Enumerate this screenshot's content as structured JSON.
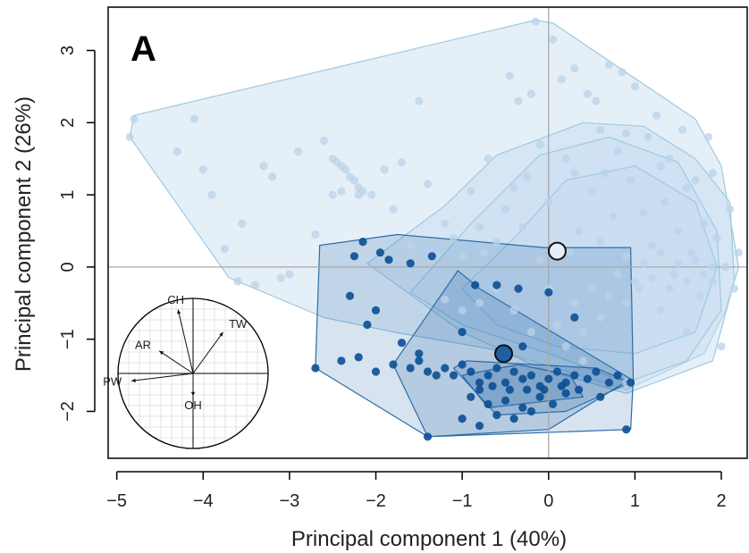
{
  "chart_data": {
    "type": "scatter",
    "panel_label": "A",
    "xlabel": "Principal component 1 (40%)",
    "ylabel": "Principal component 2 (26%)",
    "xlim": [
      -5.1,
      2.3
    ],
    "ylim": [
      -2.65,
      3.6
    ],
    "x_ticks": [
      -5,
      -4,
      -3,
      -2,
      -1,
      0,
      1,
      2
    ],
    "y_ticks": [
      -2,
      -1,
      0,
      1,
      2,
      3
    ],
    "x_tick_labels": [
      "−5",
      "−4",
      "−3",
      "−2",
      "−1",
      "0",
      "1",
      "2"
    ],
    "y_tick_labels": [
      "−2",
      "−1",
      "0",
      "1",
      "2",
      "3"
    ],
    "reference_lines": {
      "x": 0,
      "y": 0
    },
    "colors": {
      "light": "#c6dbef",
      "light_point": "#b9d3ea",
      "light_outline": "#9ecae1",
      "dark": "#08519c",
      "dark_point": "#0b4f93",
      "dark_outline": "#2c6da8"
    },
    "series": [
      {
        "group": "light",
        "centroid": [
          0.1,
          0.22
        ],
        "hulls": [
          [
            [
              -4.85,
              1.8
            ],
            [
              -4.8,
              2.1
            ],
            [
              -0.15,
              3.42
            ],
            [
              0.05,
              3.38
            ],
            [
              1.7,
              2.05
            ],
            [
              2.0,
              1.4
            ],
            [
              2.2,
              0.0
            ],
            [
              2.05,
              -0.6
            ],
            [
              1.8,
              -1.2
            ],
            [
              0.9,
              -1.7
            ],
            [
              -0.6,
              -1.15
            ],
            [
              -1.8,
              -0.9
            ],
            [
              -2.6,
              -0.7
            ],
            [
              -3.7,
              -0.15
            ],
            [
              -4.85,
              1.8
            ]
          ],
          [
            [
              -2.1,
              0.05
            ],
            [
              -1.2,
              0.85
            ],
            [
              -0.6,
              1.55
            ],
            [
              0.4,
              2.0
            ],
            [
              1.1,
              1.95
            ],
            [
              1.7,
              1.5
            ],
            [
              2.1,
              0.9
            ],
            [
              2.15,
              -0.2
            ],
            [
              1.9,
              -1.3
            ],
            [
              0.9,
              -1.75
            ],
            [
              -0.1,
              -1.4
            ],
            [
              -1.0,
              -0.9
            ],
            [
              -2.1,
              0.05
            ]
          ],
          [
            [
              -1.6,
              -0.35
            ],
            [
              -0.9,
              0.6
            ],
            [
              -0.1,
              1.55
            ],
            [
              0.7,
              1.8
            ],
            [
              1.5,
              1.45
            ],
            [
              1.95,
              0.5
            ],
            [
              2.0,
              -0.6
            ],
            [
              1.6,
              -1.3
            ],
            [
              0.9,
              -1.6
            ],
            [
              0.0,
              -1.2
            ],
            [
              -1.0,
              -0.8
            ],
            [
              -1.6,
              -0.35
            ]
          ],
          [
            [
              -1.0,
              -0.3
            ],
            [
              -0.4,
              0.4
            ],
            [
              0.2,
              1.2
            ],
            [
              1.0,
              1.4
            ],
            [
              1.7,
              0.9
            ],
            [
              1.95,
              0.0
            ],
            [
              1.7,
              -0.9
            ],
            [
              1.0,
              -1.2
            ],
            [
              0.1,
              -1.1
            ],
            [
              -0.6,
              -0.8
            ],
            [
              -1.0,
              -0.3
            ]
          ]
        ],
        "points": [
          [
            -4.85,
            1.8
          ],
          [
            -4.8,
            2.05
          ],
          [
            -4.3,
            1.6
          ],
          [
            -4.1,
            2.05
          ],
          [
            -4.0,
            1.35
          ],
          [
            -3.9,
            1.0
          ],
          [
            -3.75,
            0.25
          ],
          [
            -3.6,
            -0.2
          ],
          [
            -3.55,
            0.6
          ],
          [
            -3.3,
            1.4
          ],
          [
            -3.2,
            1.25
          ],
          [
            -3.1,
            -0.15
          ],
          [
            -2.9,
            1.6
          ],
          [
            -2.6,
            1.75
          ],
          [
            -2.5,
            1.5
          ],
          [
            -2.45,
            1.45
          ],
          [
            -2.4,
            1.4
          ],
          [
            -2.35,
            1.35
          ],
          [
            -2.3,
            1.25
          ],
          [
            -2.25,
            1.2
          ],
          [
            -2.2,
            1.1
          ],
          [
            -2.2,
            1.0
          ],
          [
            -2.15,
            1.05
          ],
          [
            -2.05,
            1.0
          ],
          [
            -2.5,
            1.0
          ],
          [
            -2.4,
            1.05
          ],
          [
            -1.9,
            1.35
          ],
          [
            -1.8,
            0.8
          ],
          [
            -1.7,
            1.45
          ],
          [
            -1.6,
            0.3
          ],
          [
            -1.5,
            2.3
          ],
          [
            -1.4,
            1.15
          ],
          [
            -1.3,
            0.15
          ],
          [
            -1.2,
            0.6
          ],
          [
            -1.1,
            0.4
          ],
          [
            -1.0,
            0.15
          ],
          [
            -0.9,
            1.05
          ],
          [
            -0.8,
            0.55
          ],
          [
            -0.75,
            0.2
          ],
          [
            -0.7,
            1.5
          ],
          [
            -0.6,
            0.35
          ],
          [
            -0.5,
            0.8
          ],
          [
            -0.45,
            2.65
          ],
          [
            -0.4,
            1.1
          ],
          [
            -0.35,
            2.3
          ],
          [
            -0.3,
            0.55
          ],
          [
            -0.25,
            1.25
          ],
          [
            -0.2,
            2.4
          ],
          [
            -0.15,
            3.4
          ],
          [
            -0.1,
            0.1
          ],
          [
            0.0,
            0.9
          ],
          [
            0.05,
            3.15
          ],
          [
            0.15,
            2.6
          ],
          [
            0.2,
            1.5
          ],
          [
            0.25,
            0.2
          ],
          [
            0.3,
            2.75
          ],
          [
            0.35,
            0.5
          ],
          [
            0.45,
            2.4
          ],
          [
            0.5,
            1.05
          ],
          [
            0.55,
            2.3
          ],
          [
            0.6,
            0.35
          ],
          [
            0.65,
            1.3
          ],
          [
            0.7,
            2.8
          ],
          [
            0.75,
            0.7
          ],
          [
            0.8,
            1.6
          ],
          [
            0.85,
            2.7
          ],
          [
            0.9,
            0.15
          ],
          [
            0.95,
            1.2
          ],
          [
            1.0,
            2.5
          ],
          [
            1.05,
            -0.3
          ],
          [
            1.1,
            0.75
          ],
          [
            1.15,
            1.8
          ],
          [
            1.2,
            0.3
          ],
          [
            1.25,
            2.1
          ],
          [
            1.3,
            -0.6
          ],
          [
            1.35,
            0.9
          ],
          [
            1.4,
            1.5
          ],
          [
            1.45,
            -0.1
          ],
          [
            1.5,
            0.5
          ],
          [
            1.55,
            1.9
          ],
          [
            1.6,
            -0.9
          ],
          [
            1.65,
            0.2
          ],
          [
            1.7,
            1.2
          ],
          [
            1.75,
            -0.4
          ],
          [
            1.8,
            0.6
          ],
          [
            1.85,
            1.8
          ],
          [
            1.9,
            -0.2
          ],
          [
            1.95,
            0.4
          ],
          [
            2.0,
            -1.1
          ],
          [
            2.05,
            0.0
          ],
          [
            2.1,
            0.8
          ],
          [
            2.15,
            -0.3
          ],
          [
            2.2,
            0.2
          ],
          [
            1.9,
            0.0
          ],
          [
            1.8,
            -0.1
          ],
          [
            1.7,
            0.1
          ],
          [
            1.6,
            -0.2
          ],
          [
            1.5,
            0.05
          ],
          [
            1.4,
            -0.3
          ],
          [
            1.3,
            0.2
          ],
          [
            1.2,
            -0.15
          ],
          [
            1.1,
            0.05
          ],
          [
            1.0,
            -0.2
          ],
          [
            0.9,
            -0.5
          ],
          [
            0.8,
            -0.1
          ],
          [
            0.7,
            -0.4
          ],
          [
            0.6,
            -0.7
          ],
          [
            0.5,
            -0.3
          ],
          [
            0.4,
            -0.9
          ],
          [
            0.3,
            -0.5
          ],
          [
            0.2,
            -1.1
          ],
          [
            0.1,
            -0.8
          ],
          [
            0.0,
            -0.3
          ],
          [
            -0.2,
            -0.9
          ],
          [
            -0.4,
            -0.6
          ],
          [
            -0.6,
            -0.3
          ],
          [
            -0.8,
            -0.5
          ],
          [
            -1.0,
            -0.6
          ],
          [
            -1.2,
            -0.45
          ],
          [
            -1.5,
            -0.7
          ],
          [
            -1.8,
            -0.55
          ],
          [
            -2.0,
            -0.3
          ],
          [
            -2.3,
            -0.6
          ],
          [
            -2.7,
            0.45
          ],
          [
            -3.0,
            -0.1
          ],
          [
            -3.4,
            -0.25
          ],
          [
            0.6,
            1.9
          ],
          [
            0.9,
            1.85
          ],
          [
            1.3,
            1.4
          ],
          [
            1.6,
            1.1
          ],
          [
            1.9,
            1.3
          ],
          [
            0.3,
            1.3
          ],
          [
            -0.1,
            1.7
          ],
          [
            0.4,
            -1.3
          ],
          [
            0.9,
            -1.6
          ]
        ]
      },
      {
        "group": "dark",
        "centroid": [
          -0.52,
          -1.2
        ],
        "hulls": [
          [
            [
              -2.65,
              0.3
            ],
            [
              -1.75,
              0.45
            ],
            [
              -0.05,
              0.27
            ],
            [
              0.95,
              0.27
            ],
            [
              0.98,
              -1.55
            ],
            [
              0.95,
              -2.25
            ],
            [
              -1.4,
              -2.35
            ],
            [
              -2.7,
              -1.4
            ],
            [
              -2.65,
              0.3
            ]
          ],
          [
            [
              -1.05,
              -0.05
            ],
            [
              -0.8,
              -0.3
            ],
            [
              0.95,
              -1.55
            ],
            [
              0.0,
              -2.25
            ],
            [
              -1.4,
              -2.35
            ],
            [
              -1.8,
              -1.35
            ],
            [
              -1.05,
              -0.05
            ]
          ],
          [
            [
              -1.1,
              -1.4
            ],
            [
              -0.95,
              -1.3
            ],
            [
              0.55,
              -1.4
            ],
            [
              0.95,
              -1.6
            ],
            [
              0.2,
              -2.0
            ],
            [
              -0.6,
              -2.05
            ],
            [
              -1.1,
              -1.4
            ]
          ],
          [
            [
              -1.0,
              -1.5
            ],
            [
              -0.35,
              -1.35
            ],
            [
              0.25,
              -1.5
            ],
            [
              0.4,
              -1.8
            ],
            [
              -0.7,
              -1.95
            ],
            [
              -1.0,
              -1.5
            ]
          ]
        ],
        "points": [
          [
            -2.15,
            0.35
          ],
          [
            -2.25,
            0.15
          ],
          [
            -1.95,
            0.2
          ],
          [
            -1.85,
            0.1
          ],
          [
            -1.6,
            0.05
          ],
          [
            -1.35,
            0.15
          ],
          [
            -0.85,
            -0.25
          ],
          [
            -0.6,
            -0.25
          ],
          [
            -0.35,
            -0.3
          ],
          [
            0.0,
            -0.35
          ],
          [
            0.3,
            -0.7
          ],
          [
            -2.7,
            -1.4
          ],
          [
            -2.4,
            -1.3
          ],
          [
            -2.2,
            -1.25
          ],
          [
            -2.0,
            -1.45
          ],
          [
            -1.8,
            -1.35
          ],
          [
            -1.6,
            -1.4
          ],
          [
            -1.5,
            -1.3
          ],
          [
            -1.4,
            -1.45
          ],
          [
            -1.3,
            -1.5
          ],
          [
            -1.2,
            -1.4
          ],
          [
            -1.1,
            -1.5
          ],
          [
            -1.0,
            -1.35
          ],
          [
            -0.9,
            -1.45
          ],
          [
            -0.8,
            -1.6
          ],
          [
            -0.7,
            -1.5
          ],
          [
            -0.6,
            -1.4
          ],
          [
            -0.5,
            -1.6
          ],
          [
            -0.4,
            -1.45
          ],
          [
            -0.3,
            -1.55
          ],
          [
            -0.2,
            -1.5
          ],
          [
            -0.1,
            -1.65
          ],
          [
            0.0,
            -1.55
          ],
          [
            0.1,
            -1.45
          ],
          [
            0.2,
            -1.6
          ],
          [
            0.3,
            -1.5
          ],
          [
            0.45,
            -1.55
          ],
          [
            0.55,
            -1.45
          ],
          [
            0.7,
            -1.6
          ],
          [
            0.8,
            -1.5
          ],
          [
            0.95,
            -1.6
          ],
          [
            -0.9,
            -1.8
          ],
          [
            -0.7,
            -1.9
          ],
          [
            -0.5,
            -1.85
          ],
          [
            -0.3,
            -1.95
          ],
          [
            -0.1,
            -1.8
          ],
          [
            0.05,
            -1.9
          ],
          [
            0.2,
            -1.75
          ],
          [
            -0.6,
            -2.05
          ],
          [
            -0.4,
            -2.1
          ],
          [
            -0.2,
            -2.0
          ],
          [
            -1.4,
            -2.35
          ],
          [
            -1.0,
            -2.1
          ],
          [
            -0.8,
            -2.2
          ],
          [
            0.9,
            -2.25
          ],
          [
            0.6,
            -1.8
          ],
          [
            -1.5,
            -1.2
          ],
          [
            -2.1,
            -0.8
          ],
          [
            -1.0,
            -0.9
          ],
          [
            -0.3,
            -1.1
          ],
          [
            -0.8,
            -1.7
          ],
          [
            -0.65,
            -1.65
          ],
          [
            -0.45,
            -1.7
          ],
          [
            -0.25,
            -1.7
          ],
          [
            -0.05,
            -1.7
          ],
          [
            0.15,
            -1.65
          ],
          [
            0.35,
            -1.7
          ],
          [
            -1.7,
            -1.05
          ],
          [
            -2.3,
            -0.4
          ],
          [
            -2.0,
            -0.6
          ]
        ]
      }
    ],
    "loadings_inset": {
      "labels": [
        "CH",
        "TW",
        "AR",
        "PW",
        "OH"
      ],
      "vectors": [
        [
          -0.2,
          0.85
        ],
        [
          0.4,
          0.55
        ],
        [
          -0.45,
          0.3
        ],
        [
          -0.82,
          -0.1
        ],
        [
          0.0,
          -0.3
        ]
      ]
    }
  }
}
